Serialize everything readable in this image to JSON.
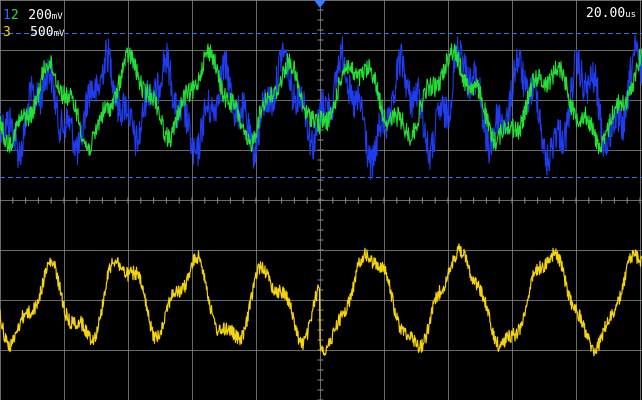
{
  "channels": [
    {
      "id": "1",
      "scale": "",
      "color": "#2f6bff"
    },
    {
      "id": "2",
      "scale": "200",
      "unit": "mV",
      "color": "#22e036"
    },
    {
      "id": "3",
      "scale": "500",
      "unit": "mV",
      "color": "#f2d20c"
    }
  ],
  "label_row1_ids": "12",
  "label_row1_scale": "200",
  "label_row1_unit": "mV",
  "label_row2_id": "3",
  "label_row2_scale": "500",
  "label_row2_unit": "mV",
  "timebase": "20.00",
  "timebase_unit": "us",
  "colors": {
    "background": "#000000",
    "grid": "#8c8c8c",
    "cursor": "#3b6ff0",
    "ch1": "#1f3cf0",
    "ch2": "#22e036",
    "ch3": "#f5d40a",
    "trigger": "#3a7bff"
  }
}
